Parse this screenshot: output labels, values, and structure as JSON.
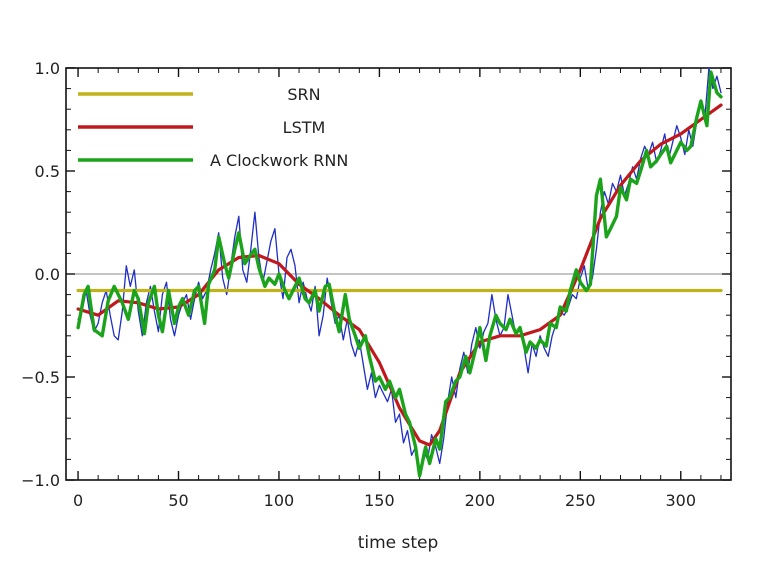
{
  "chart_data": {
    "type": "line",
    "title": "",
    "xlabel": "time step",
    "ylabel": "",
    "xlim": [
      -6,
      325
    ],
    "ylim": [
      -1.0,
      1.0
    ],
    "xticks": [
      0,
      50,
      100,
      150,
      200,
      250,
      300
    ],
    "xtick_labels": [
      "0",
      "50",
      "100",
      "150",
      "200",
      "250",
      "300"
    ],
    "yticks": [
      1.0,
      0.5,
      0.0,
      -0.5,
      -1.0
    ],
    "ytick_labels": [
      "1.0",
      "0.5",
      "0.0",
      "−0.5",
      "−1.0"
    ],
    "zero_line": true,
    "grid": false,
    "legend_position": "top-left",
    "series": [
      {
        "name": "SRN",
        "color": "#bfb21a",
        "x": [
          0,
          320
        ],
        "y": [
          -0.08,
          -0.08
        ]
      },
      {
        "name": "LSTM",
        "color": "#c0181c",
        "x": [
          0,
          10,
          20,
          30,
          40,
          50,
          60,
          70,
          80,
          90,
          100,
          110,
          120,
          130,
          140,
          150,
          160,
          170,
          175,
          180,
          190,
          200,
          210,
          220,
          230,
          240,
          250,
          260,
          270,
          280,
          290,
          300,
          310,
          320
        ],
        "y": [
          -0.17,
          -0.2,
          -0.13,
          -0.14,
          -0.17,
          -0.16,
          -0.1,
          0.02,
          0.08,
          0.09,
          0.05,
          -0.05,
          -0.12,
          -0.2,
          -0.27,
          -0.43,
          -0.65,
          -0.81,
          -0.83,
          -0.76,
          -0.48,
          -0.33,
          -0.3,
          -0.3,
          -0.27,
          -0.2,
          0.02,
          0.27,
          0.43,
          0.55,
          0.63,
          0.68,
          0.75,
          0.82
        ]
      },
      {
        "name": "A Clockwork RNN",
        "color": "#1ca31c",
        "x": [
          0,
          3,
          5,
          8,
          12,
          15,
          18,
          22,
          25,
          28,
          30,
          33,
          35,
          38,
          40,
          42,
          45,
          48,
          50,
          52,
          55,
          58,
          60,
          63,
          65,
          68,
          70,
          73,
          75,
          78,
          80,
          83,
          85,
          88,
          90,
          93,
          95,
          98,
          100,
          103,
          105,
          108,
          110,
          113,
          115,
          118,
          120,
          123,
          125,
          128,
          130,
          133,
          135,
          138,
          140,
          143,
          145,
          148,
          150,
          153,
          155,
          158,
          160,
          163,
          165,
          168,
          170,
          173,
          175,
          178,
          180,
          183,
          185,
          188,
          190,
          193,
          195,
          198,
          200,
          203,
          205,
          208,
          210,
          213,
          215,
          218,
          220,
          223,
          225,
          228,
          230,
          233,
          235,
          238,
          240,
          243,
          245,
          248,
          250,
          253,
          255,
          258,
          260,
          263,
          265,
          268,
          270,
          273,
          275,
          278,
          280,
          283,
          285,
          288,
          290,
          293,
          295,
          298,
          300,
          303,
          305,
          308,
          310,
          313,
          315,
          318,
          320
        ],
        "y": [
          -0.26,
          -0.1,
          -0.06,
          -0.27,
          -0.3,
          -0.13,
          -0.06,
          -0.14,
          -0.22,
          -0.08,
          -0.12,
          -0.29,
          -0.14,
          -0.06,
          -0.2,
          -0.28,
          -0.08,
          -0.24,
          -0.16,
          -0.12,
          -0.2,
          -0.08,
          -0.06,
          -0.24,
          -0.05,
          0.02,
          0.18,
          0.05,
          -0.02,
          0.12,
          0.2,
          0.05,
          0.08,
          0.12,
          0.03,
          -0.06,
          -0.02,
          -0.05,
          0.0,
          -0.08,
          -0.12,
          -0.06,
          -0.02,
          -0.12,
          -0.14,
          -0.08,
          -0.18,
          -0.06,
          -0.05,
          -0.2,
          -0.28,
          -0.1,
          -0.22,
          -0.3,
          -0.36,
          -0.3,
          -0.4,
          -0.52,
          -0.5,
          -0.56,
          -0.52,
          -0.6,
          -0.56,
          -0.68,
          -0.72,
          -0.84,
          -0.98,
          -0.84,
          -0.92,
          -0.8,
          -0.85,
          -0.62,
          -0.6,
          -0.52,
          -0.5,
          -0.4,
          -0.48,
          -0.36,
          -0.26,
          -0.42,
          -0.3,
          -0.2,
          -0.24,
          -0.27,
          -0.22,
          -0.29,
          -0.26,
          -0.38,
          -0.33,
          -0.36,
          -0.32,
          -0.35,
          -0.24,
          -0.26,
          -0.16,
          -0.18,
          -0.08,
          0.02,
          -0.04,
          -0.08,
          -0.05,
          0.38,
          0.46,
          0.18,
          0.22,
          0.28,
          0.42,
          0.36,
          0.46,
          0.44,
          0.5,
          0.6,
          0.52,
          0.55,
          0.58,
          0.62,
          0.54,
          0.6,
          0.64,
          0.6,
          0.62,
          0.76,
          0.84,
          0.72,
          0.98,
          0.88,
          0.86
        ]
      },
      {
        "name": "",
        "color": "#1f2ec4",
        "x": [
          0,
          2,
          4,
          6,
          8,
          10,
          12,
          14,
          16,
          18,
          20,
          22,
          24,
          26,
          28,
          30,
          32,
          34,
          36,
          38,
          40,
          42,
          44,
          46,
          48,
          50,
          52,
          54,
          56,
          58,
          60,
          62,
          64,
          66,
          68,
          70,
          72,
          74,
          76,
          78,
          80,
          82,
          84,
          86,
          88,
          90,
          92,
          94,
          96,
          98,
          100,
          102,
          104,
          106,
          108,
          110,
          112,
          114,
          116,
          118,
          120,
          122,
          124,
          126,
          128,
          130,
          132,
          134,
          136,
          138,
          140,
          142,
          144,
          146,
          148,
          150,
          152,
          154,
          156,
          158,
          160,
          162,
          164,
          166,
          168,
          170,
          172,
          174,
          176,
          178,
          180,
          182,
          184,
          186,
          188,
          190,
          192,
          194,
          196,
          198,
          200,
          202,
          204,
          206,
          208,
          210,
          212,
          214,
          216,
          218,
          220,
          222,
          224,
          226,
          228,
          230,
          232,
          234,
          236,
          238,
          240,
          242,
          244,
          246,
          248,
          250,
          252,
          254,
          256,
          258,
          260,
          262,
          264,
          266,
          268,
          270,
          272,
          274,
          276,
          278,
          280,
          282,
          284,
          286,
          288,
          290,
          292,
          294,
          296,
          298,
          300,
          302,
          304,
          306,
          308,
          310,
          312,
          314,
          316,
          318,
          320
        ],
        "y": [
          -0.22,
          -0.18,
          -0.08,
          -0.2,
          -0.28,
          -0.24,
          -0.14,
          -0.08,
          -0.2,
          -0.3,
          -0.32,
          -0.18,
          0.04,
          -0.06,
          0.02,
          -0.18,
          -0.3,
          -0.14,
          -0.06,
          -0.18,
          -0.28,
          -0.1,
          -0.04,
          -0.22,
          -0.3,
          -0.2,
          -0.14,
          -0.1,
          -0.22,
          -0.12,
          -0.04,
          -0.12,
          -0.08,
          0.02,
          0.1,
          0.2,
          -0.02,
          -0.1,
          0.04,
          0.18,
          0.28,
          0.02,
          -0.04,
          0.12,
          0.3,
          0.08,
          -0.04,
          0.06,
          0.16,
          0.22,
          0.0,
          -0.12,
          0.08,
          0.12,
          0.04,
          -0.14,
          -0.04,
          -0.12,
          -0.18,
          -0.06,
          -0.3,
          -0.2,
          -0.02,
          -0.14,
          -0.24,
          -0.2,
          -0.32,
          -0.22,
          -0.34,
          -0.4,
          -0.32,
          -0.44,
          -0.56,
          -0.48,
          -0.6,
          -0.54,
          -0.58,
          -0.62,
          -0.56,
          -0.72,
          -0.68,
          -0.82,
          -0.76,
          -0.88,
          -0.84,
          -0.98,
          -0.86,
          -0.9,
          -0.78,
          -0.84,
          -0.92,
          -0.8,
          -0.62,
          -0.5,
          -0.6,
          -0.46,
          -0.38,
          -0.48,
          -0.34,
          -0.26,
          -0.36,
          -0.28,
          -0.24,
          -0.1,
          -0.22,
          -0.3,
          -0.26,
          -0.1,
          -0.2,
          -0.3,
          -0.26,
          -0.36,
          -0.48,
          -0.34,
          -0.4,
          -0.3,
          -0.36,
          -0.4,
          -0.3,
          -0.24,
          -0.18,
          -0.2,
          -0.16,
          -0.1,
          -0.12,
          -0.02,
          0.04,
          -0.08,
          -0.02,
          0.12,
          0.3,
          0.4,
          0.34,
          0.44,
          0.4,
          0.48,
          0.38,
          0.44,
          0.52,
          0.46,
          0.56,
          0.62,
          0.58,
          0.64,
          0.54,
          0.6,
          0.68,
          0.56,
          0.64,
          0.72,
          0.66,
          0.58,
          0.7,
          0.62,
          0.74,
          0.84,
          0.76,
          1.0,
          0.9,
          0.96,
          0.88
        ]
      }
    ]
  }
}
